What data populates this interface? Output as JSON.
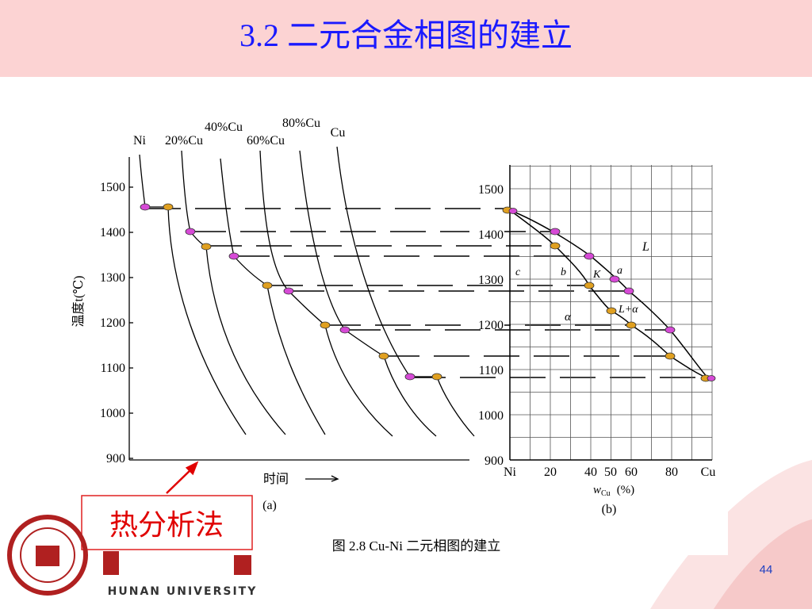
{
  "header": {
    "title": "3.2  二元合金相图的建立"
  },
  "figure": {
    "panel_a": {
      "curve_labels": [
        "Ni",
        "20%Cu",
        "40%Cu",
        "60%Cu",
        "80%Cu",
        "Cu"
      ],
      "yticks": [
        1500,
        1400,
        1300,
        1200,
        1100,
        1000,
        900
      ],
      "y_label": "温度t(℃)",
      "x_label": "时间",
      "tag": "(a)"
    },
    "panel_b": {
      "yticks": [
        1500,
        1400,
        1300,
        1200,
        1100,
        1000,
        900
      ],
      "xticks": [
        "Ni",
        "20",
        "40",
        "50",
        "60",
        "80",
        "Cu"
      ],
      "x_label": {
        "symbol": "w",
        "subscript": "Cu",
        "unit": "(%)"
      },
      "region_labels": [
        "L",
        "c",
        "b",
        "K",
        "a",
        "α",
        "L+α"
      ],
      "tag": "(b)"
    },
    "caption": "图 2.8   Cu-Ni 二元相图的建立"
  },
  "callout": "热分析法",
  "footer": {
    "page_number": "44",
    "university": "HUNAN UNIVERSITY"
  }
}
